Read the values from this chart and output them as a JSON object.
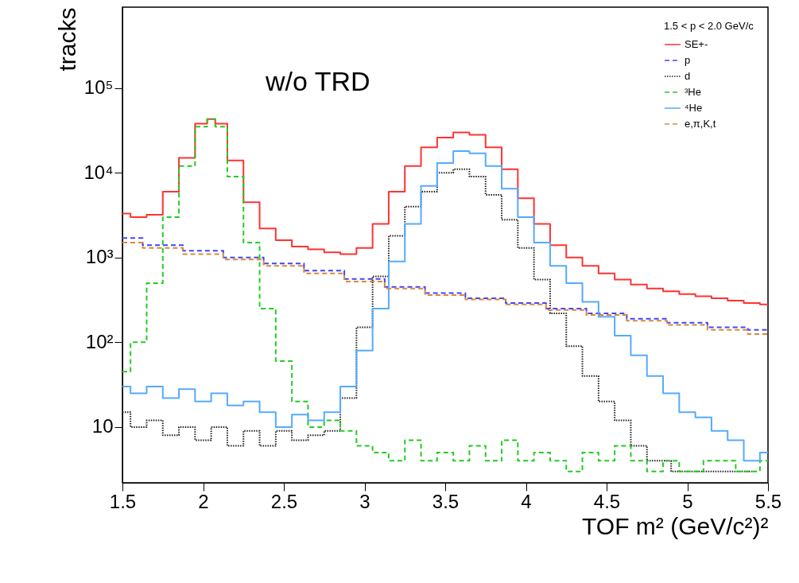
{
  "chart_data": {
    "type": "step",
    "xlabel": "TOF m² (GeV/c²)²",
    "ylabel": "tracks",
    "legend_title": "1.5 < p < 2.0 GeV/c",
    "annotations": [
      "w/o TRD"
    ],
    "log": "y",
    "grid": false,
    "legend": "top right",
    "xlim": [
      1.5,
      5.5
    ],
    "xticks": [
      1.5,
      2,
      2.5,
      3,
      3.5,
      4,
      4.5,
      5,
      5.5
    ],
    "ylim": [
      2.2,
      900000
    ],
    "yticks": [
      10,
      {
        "value": 100,
        "label": "10²"
      },
      {
        "value": 1000,
        "label": "10³"
      },
      {
        "value": 10000,
        "label": "10⁴"
      },
      {
        "value": 100000,
        "label": "10⁵"
      }
    ],
    "series": [
      {
        "name": "SE+-",
        "color": "#ff3333",
        "line_style": "solid",
        "x": [
          1.5,
          1.6,
          1.7,
          1.8,
          1.9,
          2.0,
          2.05,
          2.1,
          2.2,
          2.3,
          2.4,
          2.5,
          2.6,
          2.7,
          2.8,
          2.9,
          3.0,
          3.1,
          3.2,
          3.3,
          3.4,
          3.5,
          3.6,
          3.7,
          3.8,
          3.9,
          4.0,
          4.1,
          4.2,
          4.3,
          4.4,
          4.5,
          4.6,
          4.7,
          4.8,
          4.9,
          5.0,
          5.1,
          5.2,
          5.3,
          5.4,
          5.5
        ],
        "values": [
          3300,
          3000,
          3200,
          6000,
          15000,
          38000,
          43000,
          38000,
          14000,
          4500,
          2200,
          1600,
          1350,
          1250,
          1150,
          1100,
          1300,
          2500,
          6000,
          12000,
          20000,
          26000,
          30000,
          28000,
          20000,
          11000,
          5000,
          2500,
          1400,
          1000,
          800,
          650,
          550,
          480,
          430,
          400,
          370,
          350,
          330,
          310,
          290,
          280
        ]
      },
      {
        "name": "p",
        "color": "#4444ff",
        "line_style": "dashed",
        "x": [
          1.5,
          1.75,
          2.0,
          2.25,
          2.5,
          2.75,
          3.0,
          3.25,
          3.5,
          3.75,
          4.0,
          4.25,
          4.5,
          4.75,
          5.0,
          5.25,
          5.5
        ],
        "values": [
          1700,
          1400,
          1200,
          1000,
          850,
          700,
          560,
          450,
          380,
          330,
          290,
          250,
          220,
          190,
          170,
          150,
          140
        ]
      },
      {
        "name": "d",
        "color": "#222222",
        "line_style": "dotted",
        "x": [
          1.5,
          1.6,
          1.7,
          1.8,
          1.9,
          2.0,
          2.1,
          2.2,
          2.3,
          2.4,
          2.5,
          2.6,
          2.7,
          2.8,
          2.9,
          3.0,
          3.1,
          3.2,
          3.3,
          3.4,
          3.5,
          3.6,
          3.7,
          3.8,
          3.9,
          4.0,
          4.1,
          4.2,
          4.3,
          4.4,
          4.5,
          4.6,
          4.7,
          4.8,
          5.0,
          5.2,
          5.4
        ],
        "values": [
          15,
          10,
          12,
          8,
          10,
          7,
          10,
          6,
          9,
          6,
          9,
          7,
          8,
          9,
          22,
          150,
          600,
          1800,
          4000,
          6000,
          10000,
          11000,
          9000,
          5500,
          2800,
          1300,
          550,
          220,
          90,
          40,
          20,
          12,
          6,
          4,
          3,
          3,
          3
        ]
      },
      {
        "name": "³He",
        "color": "#22cc22",
        "line_style": "dashed",
        "x": [
          1.5,
          1.6,
          1.7,
          1.8,
          1.9,
          2.0,
          2.05,
          2.1,
          2.2,
          2.3,
          2.4,
          2.5,
          2.6,
          2.7,
          2.8,
          2.9,
          3.0,
          3.1,
          3.2,
          3.3,
          3.4,
          3.5,
          3.6,
          3.7,
          3.8,
          3.9,
          4.0,
          4.1,
          4.2,
          4.3,
          4.4,
          4.5,
          4.6,
          4.7,
          4.8,
          4.9,
          5.0,
          5.2,
          5.4,
          5.5
        ],
        "values": [
          45,
          100,
          500,
          3000,
          12000,
          35000,
          43000,
          35000,
          9000,
          1500,
          250,
          60,
          20,
          10,
          12,
          9,
          6,
          5,
          4,
          7,
          4,
          5,
          4,
          6,
          4,
          7,
          4,
          5,
          4,
          3,
          5,
          4,
          6,
          4,
          3,
          4,
          3,
          4,
          3,
          4
        ]
      },
      {
        "name": "⁴He",
        "color": "#55aaff",
        "line_style": "solid",
        "x": [
          1.5,
          1.6,
          1.7,
          1.8,
          1.9,
          2.0,
          2.1,
          2.2,
          2.3,
          2.4,
          2.5,
          2.6,
          2.7,
          2.8,
          2.9,
          3.0,
          3.1,
          3.2,
          3.3,
          3.4,
          3.5,
          3.6,
          3.7,
          3.8,
          3.9,
          4.0,
          4.1,
          4.2,
          4.3,
          4.4,
          4.5,
          4.6,
          4.7,
          4.8,
          4.9,
          5.0,
          5.1,
          5.2,
          5.3,
          5.4,
          5.5
        ],
        "values": [
          30,
          25,
          30,
          22,
          28,
          20,
          25,
          18,
          20,
          15,
          10,
          14,
          12,
          15,
          30,
          80,
          250,
          900,
          2500,
          7000,
          13000,
          18000,
          17000,
          12000,
          6500,
          3000,
          1500,
          800,
          500,
          300,
          200,
          120,
          70,
          40,
          25,
          15,
          13,
          9,
          7,
          4,
          5
        ]
      },
      {
        "name": "e,π,K,t",
        "color": "#dd8833",
        "line_style": "dashed",
        "x": [
          1.5,
          1.75,
          2.0,
          2.25,
          2.5,
          2.75,
          3.0,
          3.25,
          3.5,
          3.75,
          4.0,
          4.25,
          4.5,
          4.75,
          5.0,
          5.25,
          5.5
        ],
        "values": [
          1500,
          1300,
          1100,
          950,
          800,
          650,
          520,
          430,
          360,
          320,
          280,
          240,
          210,
          180,
          160,
          140,
          125
        ]
      }
    ]
  }
}
